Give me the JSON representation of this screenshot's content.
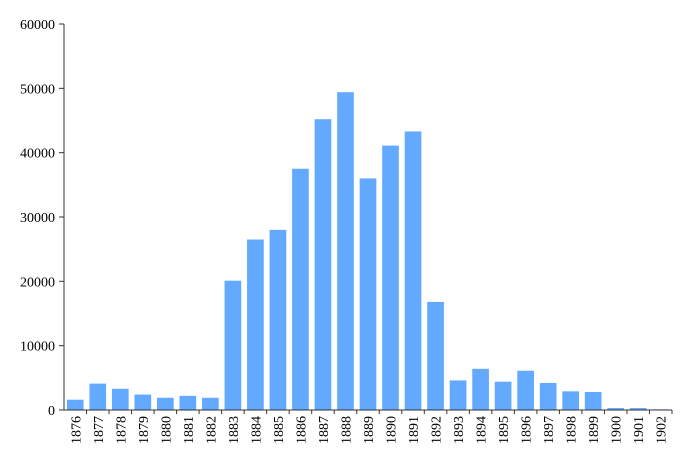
{
  "chart_data": {
    "type": "bar",
    "title": "",
    "xlabel": "",
    "ylabel": "",
    "categories": [
      "1876",
      "1877",
      "1878",
      "1879",
      "1880",
      "1881",
      "1882",
      "1883",
      "1884",
      "1885",
      "1886",
      "1887",
      "1888",
      "1889",
      "1890",
      "1891",
      "1892",
      "1893",
      "1894",
      "1895",
      "1896",
      "1897",
      "1898",
      "1899",
      "1900",
      "1901",
      "1902"
    ],
    "values": [
      1600,
      4100,
      3300,
      2400,
      1900,
      2200,
      1900,
      20100,
      26500,
      28000,
      37500,
      45200,
      49400,
      36000,
      41100,
      43300,
      16800,
      4600,
      6400,
      4400,
      6100,
      4200,
      2900,
      2800,
      300,
      300,
      100
    ],
    "ylim": [
      0,
      60000
    ],
    "yticks": [
      "0",
      "10000",
      "20000",
      "30000",
      "40000",
      "50000",
      "60000"
    ],
    "grid": false,
    "bar_color": "#62a9ff"
  }
}
